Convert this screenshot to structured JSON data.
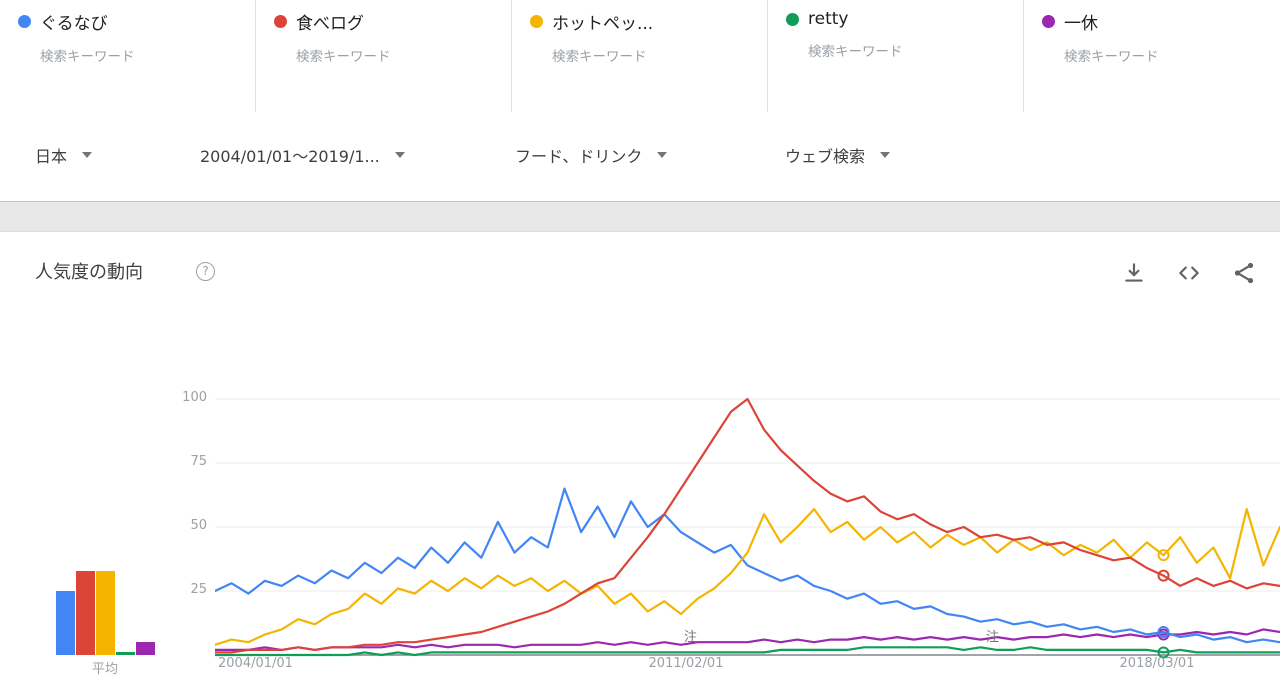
{
  "cards": [
    {
      "term": "ぐるなび",
      "type": "検索キーワード",
      "color": "#4285F4"
    },
    {
      "term": "食べログ",
      "type": "検索キーワード",
      "color": "#DB4437"
    },
    {
      "term": "ホットペッ...",
      "type": "検索キーワード",
      "color": "#F4B400"
    },
    {
      "term": "retty",
      "type": "検索キーワード",
      "color": "#0F9D58"
    },
    {
      "term": "一休",
      "type": "検索キーワード",
      "color": "#9C27B0"
    }
  ],
  "filters": [
    {
      "label": "日本"
    },
    {
      "label": "2004/01/01～2019/1..."
    },
    {
      "label": "フード、ドリンク"
    },
    {
      "label": "ウェブ検索"
    }
  ],
  "section": {
    "title": "人気度の動向",
    "help_glyph": "?"
  },
  "toolbar": {
    "icons": [
      "download",
      "embed-code",
      "share"
    ]
  },
  "chart_data": {
    "type": "line",
    "title": "人気度の動向",
    "x_tick_labels": [
      "2004/01/01",
      "2011/02/01",
      "2018/03/01"
    ],
    "y_ticks": [
      100,
      75,
      50,
      25
    ],
    "ylim": [
      0,
      100
    ],
    "grid": true,
    "notes": [
      "注",
      "注"
    ],
    "avg_label": "平均",
    "marker_index": 57,
    "draw_order": [
      3,
      4,
      0,
      2,
      1
    ],
    "series": [
      {
        "name": "ぐるなび",
        "color": "#4285F4",
        "average": 25,
        "values": [
          25,
          28,
          24,
          29,
          27,
          31,
          28,
          33,
          30,
          36,
          32,
          38,
          34,
          42,
          36,
          44,
          38,
          52,
          40,
          46,
          42,
          65,
          48,
          58,
          46,
          60,
          50,
          55,
          48,
          44,
          40,
          43,
          35,
          32,
          29,
          31,
          27,
          25,
          22,
          24,
          20,
          21,
          18,
          19,
          16,
          15,
          13,
          14,
          12,
          13,
          11,
          12,
          10,
          11,
          9,
          10,
          8,
          9,
          7,
          8,
          6,
          7,
          5,
          6,
          5
        ]
      },
      {
        "name": "食べログ",
        "color": "#DB4437",
        "average": 33,
        "values": [
          1,
          1,
          2,
          2,
          2,
          3,
          2,
          3,
          3,
          4,
          4,
          5,
          5,
          6,
          7,
          8,
          9,
          11,
          13,
          15,
          17,
          20,
          24,
          28,
          30,
          38,
          46,
          55,
          65,
          75,
          85,
          95,
          100,
          88,
          80,
          74,
          68,
          63,
          60,
          62,
          56,
          53,
          55,
          51,
          48,
          50,
          46,
          47,
          45,
          46,
          43,
          44,
          41,
          39,
          37,
          38,
          34,
          31,
          27,
          30,
          27,
          29,
          26,
          28,
          27
        ]
      },
      {
        "name": "ホットペッパー",
        "color": "#F4B400",
        "average": 33,
        "values": [
          4,
          6,
          5,
          8,
          10,
          14,
          12,
          16,
          18,
          24,
          20,
          26,
          24,
          29,
          25,
          30,
          26,
          31,
          27,
          30,
          25,
          29,
          24,
          27,
          20,
          24,
          17,
          21,
          16,
          22,
          26,
          32,
          40,
          55,
          44,
          50,
          57,
          48,
          52,
          45,
          50,
          44,
          48,
          42,
          47,
          43,
          46,
          40,
          45,
          41,
          44,
          39,
          43,
          40,
          45,
          38,
          44,
          39,
          46,
          36,
          42,
          30,
          57,
          35,
          50
        ]
      },
      {
        "name": "retty",
        "color": "#0F9D58",
        "average": 1,
        "values": [
          0,
          0,
          0,
          0,
          0,
          0,
          0,
          0,
          0,
          1,
          0,
          1,
          0,
          1,
          1,
          1,
          1,
          1,
          1,
          1,
          1,
          1,
          1,
          1,
          1,
          1,
          1,
          1,
          1,
          1,
          1,
          1,
          1,
          1,
          2,
          2,
          2,
          2,
          2,
          3,
          3,
          3,
          3,
          3,
          3,
          2,
          3,
          2,
          2,
          3,
          2,
          2,
          2,
          2,
          2,
          2,
          2,
          1,
          2,
          1,
          1,
          1,
          1,
          1,
          1
        ]
      },
      {
        "name": "一休",
        "color": "#9C27B0",
        "average": 5,
        "values": [
          2,
          2,
          2,
          3,
          2,
          3,
          2,
          3,
          3,
          3,
          3,
          4,
          3,
          4,
          3,
          4,
          4,
          4,
          3,
          4,
          4,
          4,
          4,
          5,
          4,
          5,
          4,
          5,
          4,
          5,
          5,
          5,
          5,
          6,
          5,
          6,
          5,
          6,
          6,
          7,
          6,
          7,
          6,
          7,
          6,
          7,
          6,
          7,
          6,
          7,
          7,
          8,
          7,
          8,
          7,
          8,
          7,
          8,
          8,
          9,
          8,
          9,
          8,
          10,
          9
        ]
      }
    ]
  }
}
